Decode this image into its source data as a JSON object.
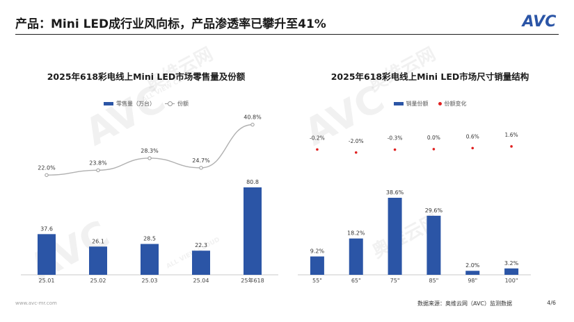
{
  "header": {
    "title": "产品：Mini LED成行业风向标，产品渗透率已攀升至41%",
    "logo_text": "AVC"
  },
  "watermark": {
    "cn": "奥维云网",
    "en": "ALL VIEW CLOUD",
    "mark": "AVC"
  },
  "colors": {
    "bar": "#2b55a6",
    "line": "#b0b0b0",
    "dot": "#e02020",
    "accent": "#2b55a6"
  },
  "footer": {
    "url": "www.avc-mr.com",
    "source": "数据来源：奥维云网（AVC）监测数据",
    "page": "4/6"
  },
  "chart_data": [
    {
      "type": "bar+line",
      "title": "2025年618彩电线上Mini LED市场零售量及份额",
      "categories": [
        "25.01",
        "25.02",
        "25.03",
        "25.04",
        "25年618"
      ],
      "series": [
        {
          "name": "零售量（万台）",
          "type": "bar",
          "values": [
            37.6,
            26.1,
            28.5,
            22.3,
            80.8
          ],
          "labels": [
            "37.6",
            "26.1",
            "28.5",
            "22.3",
            "80.8"
          ]
        },
        {
          "name": "份额",
          "type": "line",
          "values": [
            22.0,
            23.8,
            28.3,
            24.7,
            40.8
          ],
          "labels": [
            "22.0%",
            "23.8%",
            "28.3%",
            "24.7%",
            "40.8%"
          ]
        }
      ],
      "legend": "top-center",
      "grid": false
    },
    {
      "type": "bar+scatter",
      "title": "2025年618彩电线上Mini LED市场尺寸销量结构",
      "categories": [
        "55\"",
        "65\"",
        "75\"",
        "85\"",
        "98\"",
        "100\""
      ],
      "series": [
        {
          "name": "销量份额",
          "type": "bar",
          "values": [
            9.2,
            18.2,
            38.6,
            29.6,
            2.0,
            3.2
          ],
          "labels": [
            "9.2%",
            "18.2%",
            "38.6%",
            "29.6%",
            "2.0%",
            "3.2%"
          ]
        },
        {
          "name": "份额变化",
          "type": "dot",
          "values": [
            -0.2,
            -2.0,
            -0.3,
            0.0,
            0.6,
            1.6
          ],
          "labels": [
            "-0.2%",
            "-2.0%",
            "-0.3%",
            "0.0%",
            "0.6%",
            "1.6%"
          ]
        }
      ],
      "legend": "top-center",
      "grid": false
    }
  ]
}
